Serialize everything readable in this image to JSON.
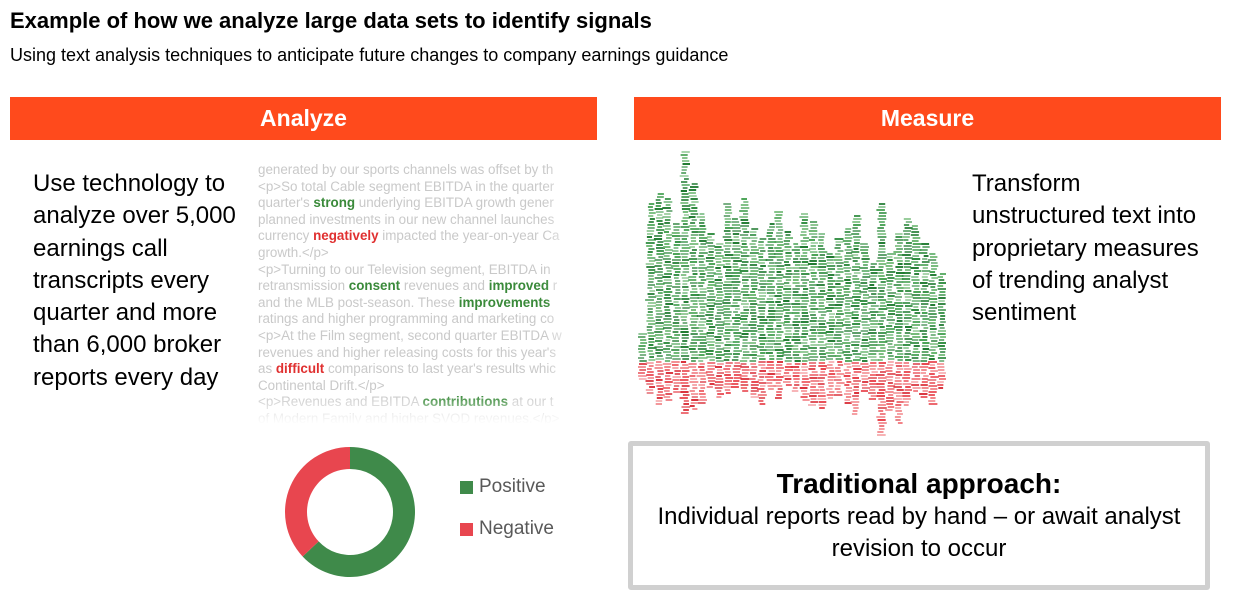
{
  "header": {
    "title": "Example of how we analyze large data sets to identify signals",
    "subtitle": "Using text analysis techniques to anticipate future changes to company earnings guidance"
  },
  "analyze": {
    "banner": "Analyze",
    "text": "Use technology to analyze over 5,000 earnings call transcripts every quarter and more than 6,000 broker reports every day",
    "transcript_lines": [
      [
        {
          "t": "generated by our sports channels was offset by th"
        }
      ],
      [
        {
          "t": "<p>So total Cable segment EBITDA in the quarter"
        }
      ],
      [
        {
          "t": "quarter's "
        },
        {
          "t": "strong",
          "c": "pos"
        },
        {
          "t": " underlying EBITDA growth gener"
        }
      ],
      [
        {
          "t": "planned investments in our new channel launches"
        }
      ],
      [
        {
          "t": "currency "
        },
        {
          "t": "negatively",
          "c": "neg"
        },
        {
          "t": " impacted the year-on-year Ca"
        }
      ],
      [
        {
          "t": "growth.</p>"
        }
      ],
      [
        {
          "t": "<p>Turning to our Television segment, EBITDA in"
        }
      ],
      [
        {
          "t": "retransmission "
        },
        {
          "t": "consent",
          "c": "pos"
        },
        {
          "t": " revenues and "
        },
        {
          "t": "improved",
          "c": "pos"
        },
        {
          "t": " r"
        }
      ],
      [
        {
          "t": "and the MLB post-season. These "
        },
        {
          "t": "improvements",
          "c": "pos"
        }
      ],
      [
        {
          "t": "ratings and higher programming and marketing co"
        }
      ],
      [
        {
          "t": "<p>At the Film segment, second quarter EBITDA w"
        }
      ],
      [
        {
          "t": "revenues and higher releasing costs for this year's"
        }
      ],
      [
        {
          "t": "as "
        },
        {
          "t": "difficult",
          "c": "neg"
        },
        {
          "t": " comparisons to last year's results whic"
        }
      ],
      [
        {
          "t": "Continental Drift.</p>"
        }
      ],
      [
        {
          "t": "<p>Revenues and EBITDA "
        },
        {
          "t": "contributions",
          "c": "pos"
        },
        {
          "t": " at our t"
        }
      ],
      [
        {
          "t": "of Modern Family and higher SVOD revenues.</p>"
        }
      ]
    ]
  },
  "chart_data": {
    "type": "pie",
    "categories": [
      "Positive",
      "Negative"
    ],
    "values": [
      63,
      37
    ],
    "colors": [
      "#3f8a4a",
      "#e8464f"
    ],
    "legend": "right"
  },
  "measure": {
    "banner": "Measure",
    "text": "Transform unstructured text into proprietary measures of trending analyst sentiment"
  },
  "traditional": {
    "title": "Traditional approach:",
    "body": "Individual reports read by hand – or await analyst revision to occur"
  }
}
